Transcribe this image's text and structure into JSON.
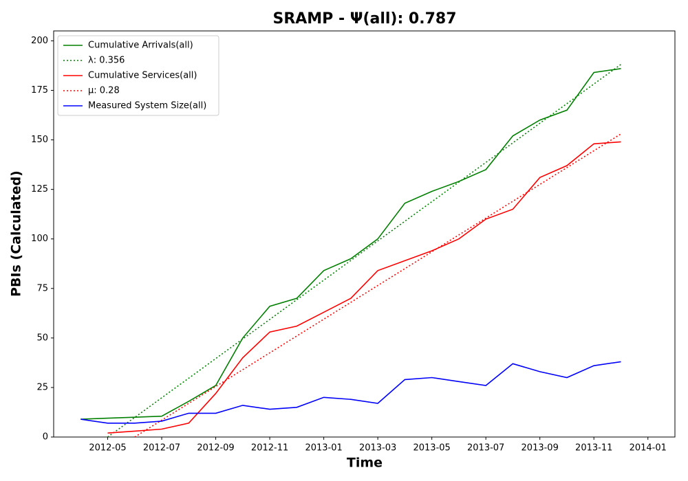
{
  "chart_data": {
    "type": "line",
    "title": "SRAMP -  Ψ(all): 0.787",
    "x_label": "Time",
    "y_label": "PBIs (Calculated)",
    "x": [
      "2012-04",
      "2012-05",
      "2012-06",
      "2012-07",
      "2012-08",
      "2012-09",
      "2012-10",
      "2012-11",
      "2012-12",
      "2013-01",
      "2013-02",
      "2013-03",
      "2013-04",
      "2013-05",
      "2013-06",
      "2013-07",
      "2013-08",
      "2013-09",
      "2013-10",
      "2013-11",
      "2013-12"
    ],
    "series": [
      {
        "name": "Cumulative Arrivals(all)",
        "color": "#008000",
        "linestyle": "solid",
        "values": [
          9,
          9.5,
          10,
          10.5,
          18,
          26,
          50,
          66,
          70,
          84,
          90,
          100,
          118,
          124,
          129,
          135,
          152,
          160,
          165,
          184,
          186
        ]
      },
      {
        "name": "λ: 0.356",
        "color": "#008000",
        "linestyle": "dotted",
        "values": [
          null,
          0,
          9.9,
          19.8,
          29.7,
          39.6,
          49.5,
          59.4,
          69.3,
          79.2,
          89.1,
          99,
          108.9,
          118.8,
          128.7,
          138.6,
          148.5,
          158.4,
          168.3,
          178.2,
          188.1
        ]
      },
      {
        "name": "Cumulative Services(all)",
        "color": "#ff0000",
        "linestyle": "solid",
        "values": [
          null,
          2,
          3,
          4,
          7,
          22,
          40,
          53,
          56,
          63,
          70,
          84,
          89,
          94,
          100,
          110,
          115,
          131,
          137,
          148,
          149
        ]
      },
      {
        "name": "μ: 0.28",
        "color": "#ff0000",
        "linestyle": "dotted",
        "values": [
          null,
          null,
          0,
          8.5,
          17,
          25.5,
          34,
          42.5,
          51,
          59.5,
          68,
          76.5,
          85,
          93.5,
          102,
          110.5,
          119,
          127.5,
          136,
          144.5,
          153
        ]
      },
      {
        "name": "Measured System Size(all)",
        "color": "#0000ff",
        "linestyle": "solid",
        "values": [
          9,
          7,
          7,
          8,
          12,
          12,
          16,
          14,
          15,
          20,
          19,
          17,
          29,
          30,
          28,
          26,
          37,
          33,
          30,
          36,
          38
        ]
      }
    ],
    "xlim": [
      "2012-03",
      "2014-02"
    ],
    "xticks": [
      "2012-05",
      "2012-07",
      "2012-09",
      "2012-11",
      "2013-01",
      "2013-03",
      "2013-05",
      "2013-07",
      "2013-09",
      "2013-11",
      "2014-01"
    ],
    "ylim": [
      0,
      205
    ],
    "yticks": [
      0,
      25,
      50,
      75,
      100,
      125,
      150,
      175,
      200
    ],
    "legend": "upper left",
    "grid": false
  }
}
